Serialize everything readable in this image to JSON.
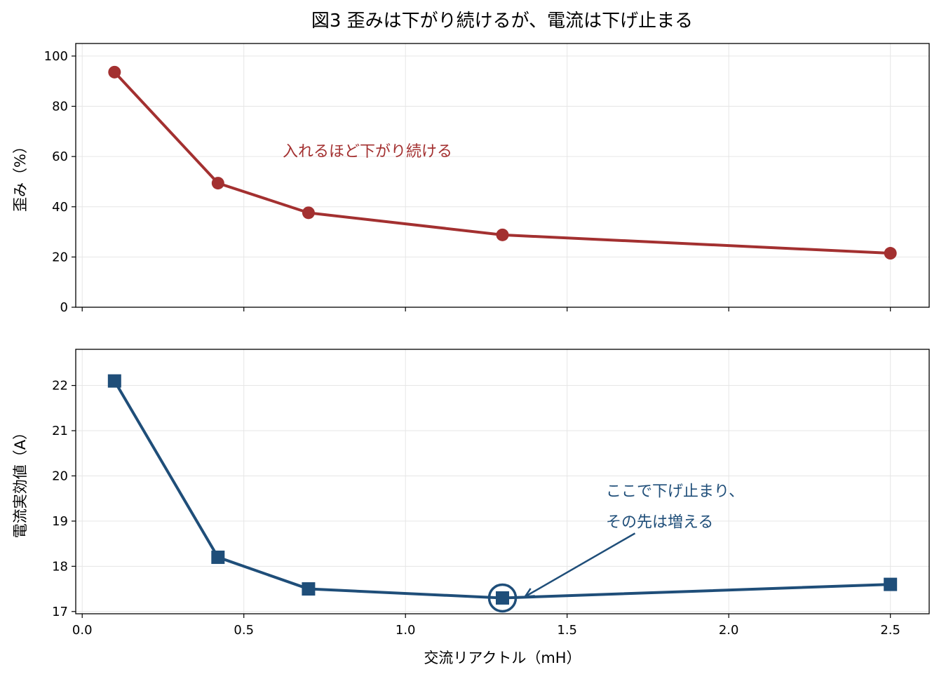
{
  "figure_title": "図3 歪みは下がり続けるが、電流は下げ止まる",
  "colors": {
    "top": "#a33030",
    "bottom": "#1f4e79"
  },
  "chart_data": [
    {
      "type": "line",
      "x": [
        0.1,
        0.42,
        0.7,
        1.3,
        2.5
      ],
      "series": [
        {
          "values": [
            93.6,
            49.4,
            37.6,
            28.8,
            21.5
          ],
          "marker": "circle",
          "color": "#a33030"
        }
      ],
      "ylabel": "歪み（%）",
      "xlim": [
        -0.02,
        2.62
      ],
      "ylim": [
        0,
        105
      ],
      "yticks": [
        0,
        20,
        40,
        60,
        80,
        100
      ],
      "xticks": [
        0.0,
        0.5,
        1.0,
        1.5,
        2.0,
        2.5
      ],
      "show_xtick_labels": false,
      "grid": true,
      "annotation": {
        "text": "入れるほど下がり続ける",
        "x": 0.62,
        "y": 60,
        "color": "#a33030"
      }
    },
    {
      "type": "line",
      "x": [
        0.1,
        0.42,
        0.7,
        1.3,
        2.5
      ],
      "series": [
        {
          "values": [
            22.1,
            18.2,
            17.5,
            17.3,
            17.6
          ],
          "marker": "square",
          "color": "#1f4e79"
        }
      ],
      "xlabel": "交流リアクトル（mH）",
      "ylabel": "電流実効値（A）",
      "xlim": [
        -0.02,
        2.62
      ],
      "ylim": [
        16.95,
        22.8
      ],
      "yticks": [
        17,
        18,
        19,
        20,
        21,
        22
      ],
      "xticks": [
        0.0,
        0.5,
        1.0,
        1.5,
        2.0,
        2.5
      ],
      "xtick_labels": [
        "0.0",
        "0.5",
        "1.0",
        "1.5",
        "2.0",
        "2.5"
      ],
      "grid": true,
      "highlight": {
        "x": 1.3,
        "y": 17.3
      },
      "annotation": {
        "lines": [
          "ここで下げ止まり、",
          "その先は増える"
        ],
        "text_x": 1.62,
        "text_y": 19.55,
        "arrow_from": [
          1.71,
          18.73
        ],
        "arrow_to": [
          1.37,
          17.33
        ],
        "color": "#1f4e79"
      }
    }
  ]
}
